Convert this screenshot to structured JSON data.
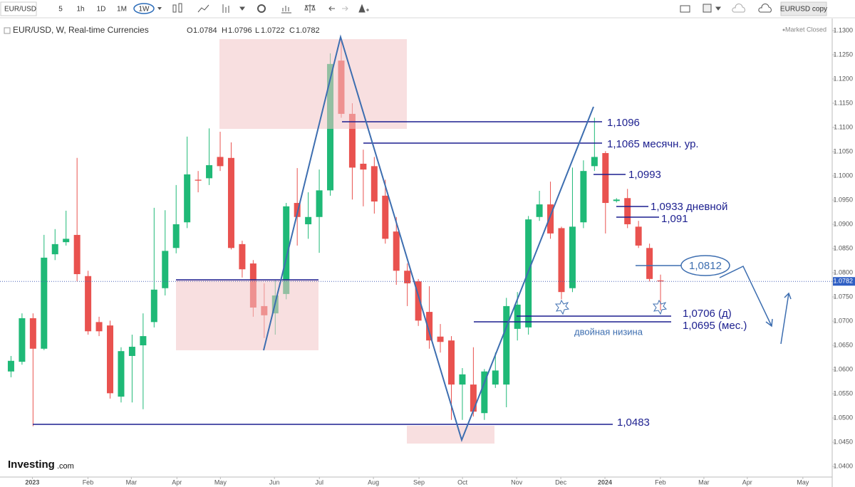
{
  "toolbar": {
    "symbol": "EUR/USD",
    "intervals": [
      "5",
      "1h",
      "1D",
      "1M",
      "1W"
    ],
    "layout_name": "EURUSD copy"
  },
  "market_status": "Market Closed",
  "logo": {
    "name": "Investing",
    "suffix": ".com"
  },
  "chart_data": {
    "type": "candlestick",
    "title": "EUR/USD, W, Real-time Currencies",
    "ohlc_labels": [
      "O",
      "H",
      "L",
      "C"
    ],
    "categories": [
      null,
      null,
      null,
      null,
      null,
      null,
      null,
      null,
      null,
      null,
      null,
      null,
      null,
      null,
      null,
      null,
      null,
      null,
      null,
      null,
      null,
      null,
      null,
      null,
      null,
      null,
      null,
      null,
      null,
      null,
      null,
      null,
      null,
      null,
      null,
      null,
      null,
      null,
      null,
      null,
      null,
      null,
      null,
      null,
      null,
      null,
      null,
      null,
      null,
      null,
      null,
      null,
      null,
      null,
      null,
      null,
      null,
      null,
      null,
      null
    ],
    "open": [
      1.0596,
      1.0616,
      1.0706,
      1.0643,
      1.0838,
      1.0863,
      1.0878,
      1.0793,
      1.0698,
      1.0691,
      1.0544,
      1.0628,
      1.065,
      1.0698,
      1.0768,
      1.0851,
      1.0904,
      1.0992,
      1.0995,
      1.1039,
      1.1037,
      1.0859,
      1.0819,
      1.0731,
      1.0716,
      1.0756,
      1.0944,
      1.09,
      1.0915,
      1.097,
      1.1238,
      1.1128,
      1.1025,
      1.102,
      1.0959,
      1.0885,
      1.0804,
      1.0782,
      1.0719,
      1.0668,
      1.066,
      1.0569,
      1.0569,
      1.051,
      1.0569,
      1.0569,
      1.0684,
      1.0687,
      1.0915,
      1.0941,
      1.0892,
      1.0768,
      1.0904,
      1.102,
      1.1047,
      1.0948,
      1.0954,
      1.0895,
      1.0851,
      1.0784
    ],
    "high": [
      1.0628,
      1.0716,
      1.0716,
      1.0878,
      1.089,
      1.0928,
      1.1037,
      1.0804,
      1.0709,
      1.0701,
      1.0646,
      1.0672,
      1.0716,
      1.0934,
      1.0929,
      1.0981,
      1.1081,
      1.101,
      1.1098,
      1.1091,
      1.1069,
      1.0866,
      1.0826,
      1.0778,
      1.0785,
      1.0944,
      1.1016,
      1.0966,
      1.1013,
      1.1253,
      1.1282,
      1.115,
      1.1054,
      1.1039,
      1.0992,
      1.0915,
      1.0819,
      1.0787,
      1.0772,
      1.0694,
      1.0669,
      1.0603,
      1.0646,
      1.0601,
      1.0635,
      1.0748,
      1.076,
      1.0917,
      1.0969,
      1.0988,
      1.0895,
      1.1017,
      1.1032,
      1.112,
      1.1051,
      1.0954,
      1.0973,
      1.0907,
      1.086,
      1.0796
    ],
    "low": [
      1.0584,
      1.061,
      1.0483,
      1.064,
      1.0826,
      1.0856,
      1.0782,
      1.0672,
      1.0669,
      1.054,
      1.0532,
      1.0532,
      1.0518,
      1.0687,
      1.0753,
      1.084,
      1.0892,
      1.0966,
      1.0981,
      1.101,
      1.0848,
      1.079,
      1.0709,
      1.0665,
      1.0672,
      1.0745,
      1.0856,
      1.087,
      1.0841,
      1.0959,
      1.112,
      1.0951,
      1.0937,
      1.0922,
      1.086,
      1.0775,
      1.0731,
      1.069,
      1.0643,
      1.0635,
      1.0496,
      1.0496,
      1.0503,
      1.0496,
      1.0562,
      1.0522,
      1.066,
      1.0672,
      1.0907,
      1.087,
      1.0745,
      1.076,
      1.0892,
      1.101,
      1.0881,
      1.0945,
      1.0892,
      1.0851,
      1.0782,
      1.0722
    ],
    "close": [
      1.0618,
      1.0706,
      1.0643,
      1.0831,
      1.0859,
      1.087,
      1.0797,
      1.0679,
      1.0679,
      1.0551,
      1.0638,
      1.0647,
      1.0669,
      1.0765,
      1.0845,
      1.09,
      1.1003,
      1.099,
      1.1022,
      1.102,
      1.0851,
      1.0807,
      1.0728,
      1.0712,
      1.0753,
      1.0937,
      1.0915,
      1.0915,
      1.097,
      1.1231,
      1.1128,
      1.1017,
      1.1013,
      1.0947,
      1.087,
      1.0804,
      1.0778,
      1.0701,
      1.066,
      1.0657,
      1.0569,
      1.059,
      1.0513,
      1.0596,
      1.0598,
      1.0731,
      1.0734,
      1.091,
      1.0941,
      1.0881,
      1.076,
      1.0895,
      1.101,
      1.1039,
      1.0944,
      1.0951,
      1.09,
      1.0856,
      1.0787,
      1.0782
    ],
    "up_color": "#1fb977",
    "down_color": "#e9524f",
    "grid": false,
    "xlim": [
      -1,
      74.4
    ],
    "xticks": [
      {
        "value": 1.94,
        "label": "2023"
      },
      {
        "value": 6.99,
        "label": "Feb"
      },
      {
        "value": 10.93,
        "label": "Mar"
      },
      {
        "value": 15.07,
        "label": "Apr"
      },
      {
        "value": 19.02,
        "label": "May"
      },
      {
        "value": 23.93,
        "label": "Jun"
      },
      {
        "value": 28.01,
        "label": "Jul"
      },
      {
        "value": 32.92,
        "label": "Aug"
      },
      {
        "value": 37.06,
        "label": "Sep"
      },
      {
        "value": 41.01,
        "label": "Oct"
      },
      {
        "value": 45.93,
        "label": "Nov"
      },
      {
        "value": 49.94,
        "label": "Dec"
      },
      {
        "value": 53.95,
        "label": "2024"
      },
      {
        "value": 58.99,
        "label": "Feb"
      },
      {
        "value": 62.94,
        "label": "Mar"
      },
      {
        "value": 66.88,
        "label": "Apr"
      },
      {
        "value": 71.93,
        "label": "May"
      }
    ],
    "ylim": [
      1.0378,
      1.1319
    ],
    "yticks": [
      {
        "value": 1.04,
        "label": "1.0400"
      },
      {
        "value": 1.045,
        "label": "1.0450"
      },
      {
        "value": 1.05,
        "label": "1.0500"
      },
      {
        "value": 1.055,
        "label": "1.0550"
      },
      {
        "value": 1.06,
        "label": "1.0600"
      },
      {
        "value": 1.065,
        "label": "1.0650"
      },
      {
        "value": 1.07,
        "label": "1.0700"
      },
      {
        "value": 1.075,
        "label": "1.0750"
      },
      {
        "value": 1.08,
        "label": "1.0800"
      },
      {
        "value": 1.085,
        "label": "1.0850"
      },
      {
        "value": 1.09,
        "label": "1.0900"
      },
      {
        "value": 1.095,
        "label": "1.0950"
      },
      {
        "value": 1.1,
        "label": "1.1000"
      },
      {
        "value": 1.105,
        "label": "1.1050"
      },
      {
        "value": 1.11,
        "label": "1.1100"
      },
      {
        "value": 1.115,
        "label": "1.1150"
      },
      {
        "value": 1.12,
        "label": "1.1200"
      },
      {
        "value": 1.125,
        "label": "1.1250"
      },
      {
        "value": 1.13,
        "label": "1.1300"
      }
    ]
  },
  "annotations": [
    "1,1096",
    "1,1065 месячн. ур.",
    "1,0993",
    "1,0933 дневной",
    "1,091",
    "1,0812",
    "1,0706 (д)",
    "1,0695 (мес.)",
    "двойная низина",
    "1,0483"
  ]
}
